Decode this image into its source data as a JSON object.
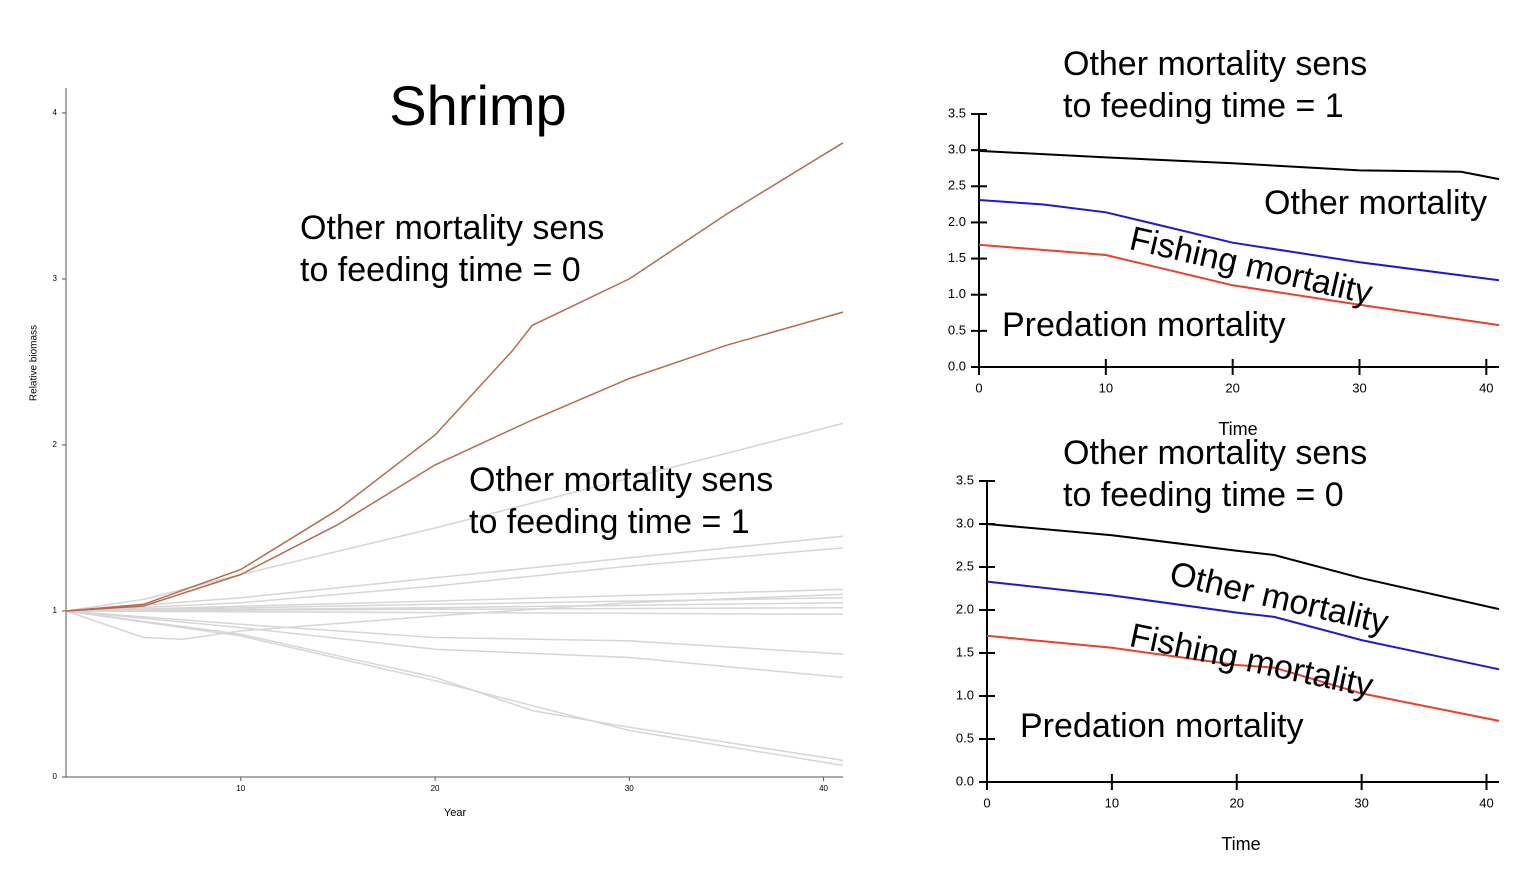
{
  "chart_data": [
    {
      "type": "line",
      "title": "Shrimp",
      "xlabel": "Year",
      "ylabel": "Relative biomass",
      "xlim": [
        1,
        41
      ],
      "ylim": [
        0,
        4.15
      ],
      "xticks": [
        10,
        20,
        30,
        40
      ],
      "yticks": [
        0,
        1,
        2,
        3,
        4
      ],
      "annotations": [
        [
          "Other mortality sens",
          "to feeding time = 0"
        ],
        [
          "Other mortality sens",
          "to feeding time = 1"
        ]
      ],
      "series": [
        {
          "color": "#b86a4e",
          "x": [
            1,
            5,
            10,
            15,
            20,
            24,
            25,
            30,
            35,
            41
          ],
          "values": [
            1.0,
            1.04,
            1.25,
            1.61,
            2.06,
            2.57,
            2.72,
            3.0,
            3.39,
            3.82
          ]
        },
        {
          "color": "#b86a4e",
          "x": [
            1,
            5,
            10,
            15,
            20,
            25,
            30,
            35,
            41
          ],
          "values": [
            1.0,
            1.03,
            1.22,
            1.52,
            1.88,
            2.15,
            2.4,
            2.6,
            2.8
          ]
        },
        {
          "color": "#d6d6d6",
          "x": [
            1,
            5,
            10,
            20,
            30,
            41
          ],
          "values": [
            1.0,
            1.07,
            1.22,
            1.5,
            1.8,
            2.13
          ]
        },
        {
          "color": "#d6d6d6",
          "x": [
            1,
            10,
            20,
            30,
            41
          ],
          "values": [
            1.0,
            1.08,
            1.2,
            1.32,
            1.45
          ]
        },
        {
          "color": "#d6d6d6",
          "x": [
            1,
            10,
            20,
            30,
            41
          ],
          "values": [
            1.0,
            1.05,
            1.15,
            1.27,
            1.38
          ]
        },
        {
          "color": "#d6d6d6",
          "x": [
            1,
            20,
            41
          ],
          "values": [
            1.0,
            1.06,
            1.13
          ]
        },
        {
          "color": "#d6d6d6",
          "x": [
            1,
            20,
            41
          ],
          "values": [
            1.0,
            1.04,
            1.08
          ]
        },
        {
          "color": "#d6d6d6",
          "x": [
            1,
            20,
            41
          ],
          "values": [
            1.0,
            1.02,
            1.05
          ]
        },
        {
          "color": "#d6d6d6",
          "x": [
            1,
            20,
            41
          ],
          "values": [
            1.0,
            1.01,
            1.02
          ]
        },
        {
          "color": "#d6d6d6",
          "x": [
            1,
            20,
            41
          ],
          "values": [
            1.0,
            0.99,
            0.98
          ]
        },
        {
          "color": "#d6d6d6",
          "x": [
            1,
            5,
            7,
            10,
            20,
            30,
            41
          ],
          "values": [
            1.0,
            0.84,
            0.83,
            0.88,
            0.97,
            1.05,
            1.1
          ]
        },
        {
          "color": "#d6d6d6",
          "x": [
            1,
            10,
            20,
            30,
            41
          ],
          "values": [
            1.0,
            0.92,
            0.84,
            0.82,
            0.74
          ]
        },
        {
          "color": "#d6d6d6",
          "x": [
            1,
            10,
            20,
            30,
            41
          ],
          "values": [
            1.0,
            0.9,
            0.77,
            0.72,
            0.6
          ]
        },
        {
          "color": "#d6d6d6",
          "x": [
            1,
            10,
            20,
            25,
            30,
            41
          ],
          "values": [
            1.0,
            0.86,
            0.6,
            0.4,
            0.3,
            0.1
          ]
        },
        {
          "color": "#d6d6d6",
          "x": [
            1,
            10,
            20,
            30,
            41
          ],
          "values": [
            1.0,
            0.85,
            0.58,
            0.28,
            0.07
          ]
        }
      ]
    },
    {
      "type": "line",
      "title": [
        "Other mortality sens",
        "to feeding time = 1"
      ],
      "xlabel": "Time",
      "xlim": [
        0,
        41
      ],
      "ylim": [
        0,
        3.5
      ],
      "xticks": [
        0,
        10,
        20,
        30,
        40
      ],
      "yticks": [
        {
          "value": 0,
          "label": "0.0"
        },
        {
          "value": 0.5,
          "label": "0.5"
        },
        {
          "value": 1,
          "label": "1.0"
        },
        {
          "value": 1.5,
          "label": "1.5"
        },
        {
          "value": 2,
          "label": "2.0"
        },
        {
          "value": 2.5,
          "label": "2.5"
        },
        {
          "value": 3,
          "label": "3.0"
        },
        {
          "value": 3.5,
          "label": "3.5"
        }
      ],
      "series": [
        {
          "name": "Other mortality",
          "color": "#000000",
          "x": [
            0,
            10,
            20,
            30,
            38,
            41
          ],
          "values": [
            2.99,
            2.9,
            2.82,
            2.72,
            2.7,
            2.6
          ]
        },
        {
          "name": "Fishing mortality",
          "color": "#1a1ad0",
          "x": [
            0,
            5,
            10,
            20,
            30,
            41
          ],
          "values": [
            2.31,
            2.25,
            2.14,
            1.72,
            1.45,
            1.2
          ]
        },
        {
          "name": "Predation mortality",
          "color": "#e8412b",
          "x": [
            0,
            10,
            20,
            30,
            41
          ],
          "values": [
            1.69,
            1.55,
            1.13,
            0.86,
            0.58
          ]
        }
      ]
    },
    {
      "type": "line",
      "title": [
        "Other mortality sens",
        "to feeding time = 0"
      ],
      "xlabel": "Time",
      "xlim": [
        0,
        41
      ],
      "ylim": [
        0,
        3.5
      ],
      "xticks": [
        0,
        10,
        20,
        30,
        40
      ],
      "yticks": [
        {
          "value": 0,
          "label": "0.0"
        },
        {
          "value": 0.5,
          "label": "0.5"
        },
        {
          "value": 1,
          "label": "1.0"
        },
        {
          "value": 1.5,
          "label": "1.5"
        },
        {
          "value": 2,
          "label": "2.0"
        },
        {
          "value": 2.5,
          "label": "2.5"
        },
        {
          "value": 3,
          "label": "3.0"
        },
        {
          "value": 3.5,
          "label": "3.5"
        }
      ],
      "series": [
        {
          "name": "Other mortality",
          "color": "#000000",
          "x": [
            0,
            10,
            20,
            23,
            30,
            41
          ],
          "values": [
            3.0,
            2.87,
            2.69,
            2.64,
            2.37,
            2.01
          ]
        },
        {
          "name": "Fishing mortality",
          "color": "#1a1ad0",
          "x": [
            0,
            10,
            20,
            23,
            30,
            41
          ],
          "values": [
            2.33,
            2.17,
            1.97,
            1.92,
            1.65,
            1.31
          ]
        },
        {
          "name": "Predation mortality",
          "color": "#e8412b",
          "x": [
            0,
            10,
            20,
            23,
            30,
            41
          ],
          "values": [
            1.7,
            1.56,
            1.36,
            1.33,
            1.03,
            0.71
          ]
        }
      ]
    }
  ]
}
